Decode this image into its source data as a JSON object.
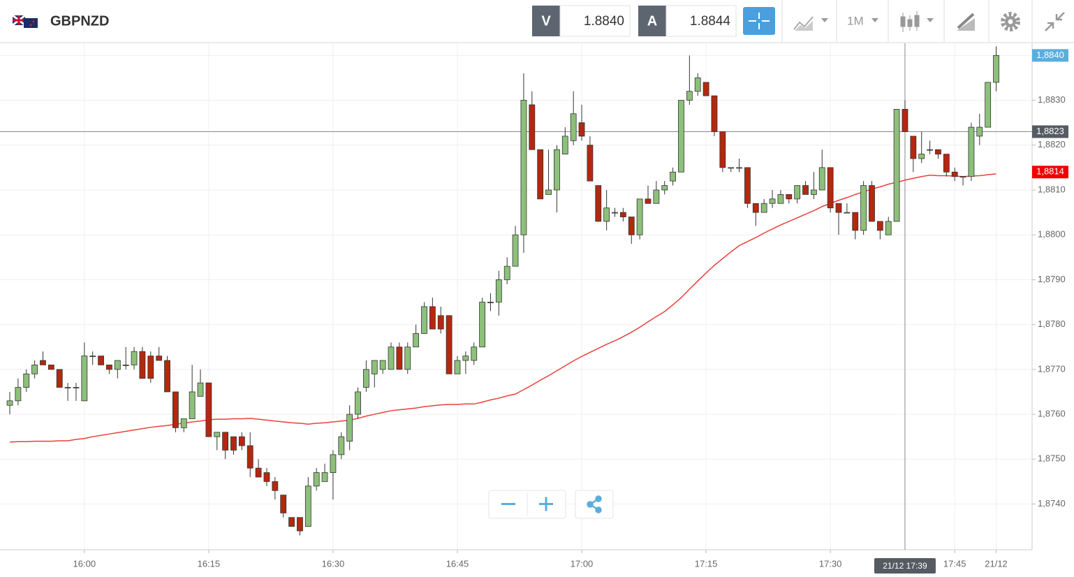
{
  "header": {
    "symbol": "GBPNZD",
    "bid_label": "V",
    "bid": "1.8840",
    "ask_label": "A",
    "ask": "1.8844",
    "timeframe": "1M"
  },
  "chart_data": {
    "type": "candlestick",
    "categories": [
      "15:51",
      "15:52",
      "15:53",
      "15:54",
      "15:55",
      "15:56",
      "15:57",
      "15:58",
      "15:59",
      "16:00",
      "16:01",
      "16:02",
      "16:03",
      "16:04",
      "16:05",
      "16:06",
      "16:07",
      "16:08",
      "16:09",
      "16:10",
      "16:11",
      "16:12",
      "16:13",
      "16:14",
      "16:15",
      "16:16",
      "16:17",
      "16:18",
      "16:19",
      "16:20",
      "16:21",
      "16:22",
      "16:23",
      "16:24",
      "16:25",
      "16:26",
      "16:27",
      "16:28",
      "16:29",
      "16:30",
      "16:31",
      "16:32",
      "16:33",
      "16:34",
      "16:35",
      "16:36",
      "16:37",
      "16:38",
      "16:39",
      "16:40",
      "16:41",
      "16:42",
      "16:43",
      "16:44",
      "16:45",
      "16:46",
      "16:47",
      "16:48",
      "16:49",
      "16:50",
      "16:51",
      "16:52",
      "16:53",
      "16:54",
      "16:55",
      "16:56",
      "16:57",
      "16:58",
      "16:59",
      "17:00",
      "17:01",
      "17:02",
      "17:03",
      "17:04",
      "17:05",
      "17:06",
      "17:07",
      "17:08",
      "17:09",
      "17:10",
      "17:11",
      "17:12",
      "17:13",
      "17:14",
      "17:15",
      "17:16",
      "17:17",
      "17:18",
      "17:19",
      "17:20",
      "17:21",
      "17:22",
      "17:23",
      "17:24",
      "17:25",
      "17:26",
      "17:27",
      "17:28",
      "17:29",
      "17:30",
      "17:31",
      "17:32",
      "17:33",
      "17:34",
      "17:35",
      "17:36",
      "17:37",
      "17:38",
      "17:39",
      "17:40",
      "17:41",
      "17:42",
      "17:43",
      "17:44",
      "17:45",
      "17:46",
      "17:47",
      "17:48",
      "17:49",
      "17:50"
    ],
    "open": [
      1.8762,
      1.8763,
      1.8766,
      1.8769,
      1.8772,
      1.8771,
      1.877,
      1.8766,
      1.8766,
      1.8763,
      1.8773,
      1.8773,
      1.8771,
      1.877,
      1.8771,
      1.8771,
      1.8774,
      1.8773,
      1.8773,
      1.8772,
      1.8765,
      1.8757,
      1.8759,
      1.8764,
      1.8767,
      1.8755,
      1.8756,
      1.8755,
      1.8755,
      1.8753,
      1.8748,
      1.8747,
      1.8745,
      1.8742,
      1.8737,
      1.8737,
      1.8735,
      1.8744,
      1.8745,
      1.8747,
      1.8751,
      1.8754,
      1.876,
      1.8766,
      1.8769,
      1.877,
      1.877,
      1.8775,
      1.877,
      1.8775,
      1.8778,
      1.8784,
      1.8782,
      1.8782,
      1.8769,
      1.8772,
      1.8772,
      1.8775,
      1.8785,
      1.8785,
      1.879,
      1.8793,
      1.88,
      1.8829,
      1.8819,
      1.8809,
      1.881,
      1.8818,
      1.8821,
      1.8825,
      1.882,
      1.8811,
      1.8803,
      1.8805,
      1.8805,
      1.8804,
      1.88,
      1.8808,
      1.8807,
      1.881,
      1.8812,
      1.8814,
      1.883,
      1.8832,
      1.8834,
      1.8831,
      1.8823,
      1.8815,
      1.8815,
      1.8815,
      1.8807,
      1.8805,
      1.8807,
      1.8807,
      1.8809,
      1.8808,
      1.8811,
      1.8809,
      1.881,
      1.8815,
      1.8807,
      1.8805,
      1.8805,
      1.8801,
      1.8811,
      1.8803,
      1.88,
      1.8803,
      1.8828,
      1.8822,
      1.8817,
      1.8819,
      1.8819,
      1.8818,
      1.8814,
      1.8813,
      1.8813,
      1.8822,
      1.8824,
      1.8834
    ],
    "high": [
      1.8765,
      1.8768,
      1.877,
      1.8772,
      1.8774,
      1.8771,
      1.877,
      1.8767,
      1.8767,
      1.8776,
      1.8774,
      1.8773,
      1.8771,
      1.8772,
      1.8775,
      1.8775,
      1.8775,
      1.8774,
      1.8775,
      1.8773,
      1.8765,
      1.8759,
      1.8771,
      1.877,
      1.8767,
      1.8756,
      1.8756,
      1.8755,
      1.8756,
      1.8756,
      1.875,
      1.8748,
      1.8746,
      1.8742,
      1.8737,
      1.8737,
      1.8746,
      1.8748,
      1.8749,
      1.8752,
      1.8756,
      1.8762,
      1.8766,
      1.8772,
      1.8772,
      1.8772,
      1.8776,
      1.8776,
      1.8776,
      1.878,
      1.8785,
      1.8786,
      1.8784,
      1.8782,
      1.8773,
      1.8774,
      1.8776,
      1.8786,
      1.8787,
      1.8792,
      1.8795,
      1.8802,
      1.8836,
      1.8832,
      1.8819,
      1.8819,
      1.882,
      1.8824,
      1.8832,
      1.8829,
      1.8822,
      1.8811,
      1.881,
      1.8806,
      1.8806,
      1.8804,
      1.8808,
      1.8811,
      1.8812,
      1.8812,
      1.8815,
      1.883,
      1.884,
      1.8836,
      1.8834,
      1.8831,
      1.8823,
      1.8815,
      1.8817,
      1.8815,
      1.8807,
      1.8808,
      1.881,
      1.881,
      1.8809,
      1.8811,
      1.8812,
      1.8814,
      1.8819,
      1.8815,
      1.8807,
      1.8807,
      1.8805,
      1.8812,
      1.8812,
      1.8803,
      1.8804,
      1.8828,
      1.883,
      1.8822,
      1.8823,
      1.8821,
      1.8819,
      1.8818,
      1.8815,
      1.8813,
      1.8825,
      1.8827,
      1.8834,
      1.8842
    ],
    "low": [
      1.876,
      1.8762,
      1.8765,
      1.8768,
      1.8771,
      1.877,
      1.8766,
      1.8763,
      1.8763,
      1.8763,
      1.8771,
      1.8771,
      1.8769,
      1.8768,
      1.877,
      1.877,
      1.8768,
      1.8767,
      1.8772,
      1.8765,
      1.8756,
      1.8756,
      1.8759,
      1.8764,
      1.8755,
      1.8752,
      1.875,
      1.8751,
      1.8752,
      1.8746,
      1.8746,
      1.8744,
      1.8741,
      1.8737,
      1.8735,
      1.8733,
      1.8735,
      1.8743,
      1.8745,
      1.8741,
      1.875,
      1.8752,
      1.8759,
      1.8765,
      1.8766,
      1.8769,
      1.877,
      1.877,
      1.8769,
      1.8775,
      1.8778,
      1.8779,
      1.8778,
      1.8769,
      1.8769,
      1.8769,
      1.8771,
      1.8775,
      1.8783,
      1.8782,
      1.8789,
      1.8793,
      1.8796,
      1.8819,
      1.8808,
      1.8809,
      1.8805,
      1.8818,
      1.882,
      1.8821,
      1.8812,
      1.8803,
      1.8801,
      1.8804,
      1.8803,
      1.8798,
      1.8799,
      1.8807,
      1.8807,
      1.8809,
      1.8811,
      1.8814,
      1.8829,
      1.8831,
      1.8831,
      1.8822,
      1.8814,
      1.8814,
      1.8814,
      1.8806,
      1.8802,
      1.8805,
      1.8806,
      1.8807,
      1.8807,
      1.8807,
      1.8809,
      1.8808,
      1.881,
      1.8805,
      1.88,
      1.8805,
      1.8799,
      1.88,
      1.8803,
      1.8799,
      1.88,
      1.8803,
      1.8823,
      1.8814,
      1.8816,
      1.8818,
      1.8817,
      1.8813,
      1.8812,
      1.8811,
      1.8812,
      1.882,
      1.8824,
      1.8832
    ],
    "close": [
      1.8763,
      1.8766,
      1.8769,
      1.8771,
      1.8771,
      1.877,
      1.8766,
      1.8766,
      1.8766,
      1.8773,
      1.8773,
      1.8771,
      1.877,
      1.8772,
      1.8771,
      1.8774,
      1.8768,
      1.8768,
      1.8772,
      1.8765,
      1.8757,
      1.8759,
      1.8765,
      1.8767,
      1.8755,
      1.8756,
      1.8752,
      1.8752,
      1.8753,
      1.8748,
      1.8746,
      1.8745,
      1.8743,
      1.8738,
      1.8735,
      1.8734,
      1.8744,
      1.8747,
      1.8747,
      1.8751,
      1.8755,
      1.876,
      1.8765,
      1.877,
      1.8772,
      1.8772,
      1.8775,
      1.877,
      1.8775,
      1.8778,
      1.8784,
      1.8779,
      1.8779,
      1.8769,
      1.8772,
      1.8773,
      1.8775,
      1.8785,
      1.8785,
      1.879,
      1.8793,
      1.88,
      1.883,
      1.8819,
      1.8808,
      1.881,
      1.8819,
      1.8822,
      1.8827,
      1.8822,
      1.8812,
      1.8803,
      1.8806,
      1.8805,
      1.8804,
      1.88,
      1.8808,
      1.8807,
      1.881,
      1.8811,
      1.8814,
      1.883,
      1.8832,
      1.8835,
      1.8831,
      1.8823,
      1.8815,
      1.8815,
      1.8815,
      1.8807,
      1.8805,
      1.8807,
      1.8808,
      1.8809,
      1.8808,
      1.8811,
      1.8809,
      1.881,
      1.8815,
      1.8806,
      1.8805,
      1.8805,
      1.8801,
      1.8811,
      1.8803,
      1.8801,
      1.8803,
      1.8828,
      1.8823,
      1.8817,
      1.8818,
      1.8819,
      1.8818,
      1.8814,
      1.8813,
      1.8813,
      1.8824,
      1.8824,
      1.8834,
      1.884
    ],
    "up_color": "#8dc07a",
    "down_color": "#b5270f",
    "moving_average": {
      "color": "#e8413b",
      "values": [
        1.87538,
        1.87539,
        1.87539,
        1.8754,
        1.8754,
        1.8754,
        1.87541,
        1.87541,
        1.87544,
        1.87546,
        1.8755,
        1.87553,
        1.87556,
        1.87559,
        1.87562,
        1.87565,
        1.87568,
        1.87571,
        1.87573,
        1.87575,
        1.87578,
        1.8758,
        1.87583,
        1.87585,
        1.87588,
        1.87589,
        1.87589,
        1.8759,
        1.8759,
        1.87591,
        1.87589,
        1.87587,
        1.87585,
        1.87583,
        1.87581,
        1.8758,
        1.87578,
        1.8758,
        1.87581,
        1.87583,
        1.87585,
        1.87587,
        1.87591,
        1.87596,
        1.876,
        1.87604,
        1.87608,
        1.8761,
        1.87612,
        1.87614,
        1.87617,
        1.87619,
        1.87621,
        1.87622,
        1.87622,
        1.87623,
        1.87623,
        1.87627,
        1.87632,
        1.87636,
        1.87641,
        1.87645,
        1.87655,
        1.87665,
        1.87676,
        1.87686,
        1.87697,
        1.87708,
        1.87719,
        1.87729,
        1.87738,
        1.87747,
        1.87756,
        1.87764,
        1.87773,
        1.87783,
        1.87794,
        1.87806,
        1.87818,
        1.87829,
        1.87844,
        1.8786,
        1.87879,
        1.87897,
        1.87915,
        1.87932,
        1.87947,
        1.87962,
        1.87976,
        1.87985,
        1.87994,
        1.88004,
        1.88013,
        1.88022,
        1.8803,
        1.88038,
        1.88046,
        1.88054,
        1.88063,
        1.8807,
        1.88077,
        1.88083,
        1.8809,
        1.88096,
        1.88102,
        1.88107,
        1.88113,
        1.88117,
        1.88122,
        1.88126,
        1.8813,
        1.88133,
        1.88132,
        1.88132,
        1.88131,
        1.8813,
        1.88131,
        1.88132,
        1.88134,
        1.88136
      ]
    },
    "ylim": [
      1.87298,
      1.88427
    ],
    "yticks": [
      {
        "value": 1.874,
        "label": "1,8740"
      },
      {
        "value": 1.875,
        "label": "1,8750"
      },
      {
        "value": 1.876,
        "label": "1,8760"
      },
      {
        "value": 1.877,
        "label": "1,8770"
      },
      {
        "value": 1.878,
        "label": "1,8780"
      },
      {
        "value": 1.879,
        "label": "1,8790"
      },
      {
        "value": 1.88,
        "label": "1,8800"
      },
      {
        "value": 1.881,
        "label": "1,8810"
      },
      {
        "value": 1.882,
        "label": "1,8820"
      },
      {
        "value": 1.883,
        "label": "1,8830"
      },
      {
        "value": 1.884,
        "label": "1,8840"
      }
    ],
    "xticks": [
      "16:00",
      "16:15",
      "16:30",
      "16:45",
      "17:00",
      "17:15",
      "17:30",
      "17:45",
      {
        "value": "17:50",
        "label": "21/12"
      }
    ],
    "grid": true,
    "last_price": {
      "value": 1.884,
      "label": "1,8840",
      "color": "#5aaedc"
    },
    "ma_price": {
      "value": 1.8814,
      "label": "1,8814",
      "color": "#f20000"
    },
    "crosshair": {
      "x": "17:39",
      "x_label": "21/12 17:39",
      "y": 1.8823,
      "y_label": "1,8823",
      "color": "#555b62"
    }
  }
}
